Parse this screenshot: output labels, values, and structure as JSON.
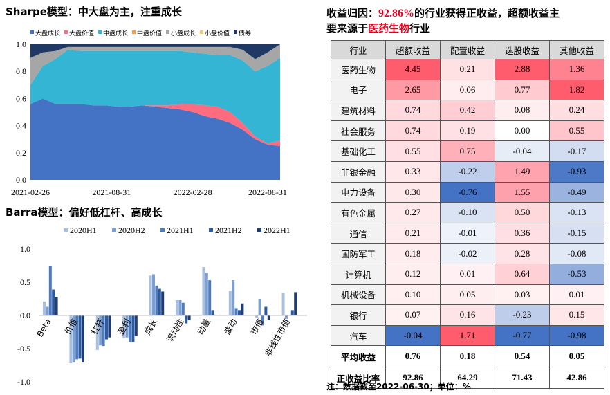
{
  "sharpe": {
    "title": "Sharpe模型：中大盘为主，注重成长",
    "legend": [
      {
        "name": "大盘成长",
        "color": "#4472c4"
      },
      {
        "name": "大盘价值",
        "color": "#ff6b7f"
      },
      {
        "name": "中盘成长",
        "color": "#33b5d3"
      },
      {
        "name": "中盘价值",
        "color": "#f39c4e"
      },
      {
        "name": "小盘成长",
        "color": "#a6a6a6"
      },
      {
        "name": "小盘价值",
        "color": "#f5c97a"
      },
      {
        "name": "债券",
        "color": "#203864"
      }
    ],
    "x_labels": [
      "2021-02-26",
      "2021-08-31",
      "2022-02-28",
      "2022-08-31"
    ],
    "y_labels": [
      "0.0",
      "0.2",
      "0.4",
      "0.6",
      "0.8",
      "1.0"
    ]
  },
  "barra": {
    "title": "Barra模型：偏好低杠杆、高成长",
    "legend": [
      {
        "name": "2020H1",
        "color": "#a9c0e0"
      },
      {
        "name": "2020H2",
        "color": "#7d9fd1"
      },
      {
        "name": "2021H1",
        "color": "#4f7bbf"
      },
      {
        "name": "2021H2",
        "color": "#2c5aa0"
      },
      {
        "name": "2022H1",
        "color": "#1f3d73"
      }
    ],
    "y_labels": [
      "1.0",
      "0.5",
      "0.0",
      "-0.5",
      "-1.0"
    ]
  },
  "chart_data": [
    {
      "type": "area",
      "title": "Sharpe模型：中大盘为主，注重成长",
      "stacked": true,
      "ylim": [
        0,
        1
      ],
      "x_tick_labels": [
        "2021-02-26",
        "2021-08-31",
        "2022-02-28",
        "2022-08-31"
      ],
      "x": [
        0,
        1,
        2,
        3,
        4,
        5,
        6,
        7,
        8,
        9,
        10,
        11,
        12,
        13,
        14,
        15,
        16,
        17,
        18,
        19,
        20
      ],
      "series": [
        {
          "name": "大盘成长",
          "values": [
            0.56,
            0.6,
            0.56,
            0.56,
            0.56,
            0.55,
            0.55,
            0.54,
            0.54,
            0.55,
            0.54,
            0.53,
            0.52,
            0.5,
            0.47,
            0.45,
            0.42,
            0.37,
            0.3,
            0.26,
            0.25
          ]
        },
        {
          "name": "大盘价值",
          "values": [
            0.0,
            0.0,
            0.0,
            0.0,
            0.0,
            0.0,
            0.0,
            0.0,
            0.0,
            0.0,
            0.01,
            0.02,
            0.04,
            0.06,
            0.08,
            0.09,
            0.08,
            0.05,
            0.02,
            0.01,
            0.04
          ]
        },
        {
          "name": "中盘成长",
          "values": [
            0.14,
            0.24,
            0.33,
            0.4,
            0.39,
            0.4,
            0.4,
            0.41,
            0.41,
            0.4,
            0.4,
            0.4,
            0.39,
            0.38,
            0.38,
            0.38,
            0.42,
            0.46,
            0.48,
            0.57,
            0.61
          ]
        },
        {
          "name": "中盘价值",
          "values": [
            0,
            0,
            0,
            0,
            0,
            0,
            0,
            0,
            0,
            0,
            0,
            0,
            0,
            0,
            0,
            0,
            0,
            0,
            0,
            0,
            0
          ]
        },
        {
          "name": "小盘成长",
          "values": [
            0.2,
            0.1,
            0.06,
            0.02,
            0.03,
            0.03,
            0.03,
            0.03,
            0.03,
            0.03,
            0.03,
            0.03,
            0.03,
            0.04,
            0.05,
            0.06,
            0.06,
            0.08,
            0.09,
            0.1,
            0.1
          ]
        },
        {
          "name": "小盘价值",
          "values": [
            0,
            0,
            0,
            0,
            0,
            0,
            0,
            0,
            0,
            0,
            0,
            0,
            0,
            0,
            0,
            0,
            0,
            0,
            0,
            0,
            0
          ]
        },
        {
          "name": "债券",
          "values": [
            0.1,
            0.06,
            0.05,
            0.02,
            0.02,
            0.02,
            0.02,
            0.02,
            0.02,
            0.02,
            0.02,
            0.02,
            0.02,
            0.02,
            0.02,
            0.02,
            0.02,
            0.04,
            0.11,
            0.06,
            0.0
          ]
        }
      ]
    },
    {
      "type": "bar",
      "title": "Barra模型：偏好低杠杆、高成长",
      "ylim": [
        -1,
        1
      ],
      "categories": [
        "Beta",
        "价值",
        "杠杆",
        "盈利",
        "成长",
        "流动性",
        "动量",
        "波动",
        "市值",
        "非线性市值"
      ],
      "series": [
        {
          "name": "2020H1",
          "values": [
            0.21,
            -0.72,
            -0.52,
            -0.34,
            0.6,
            0.23,
            0.73,
            0.37,
            -0.04,
            0.34
          ]
        },
        {
          "name": "2020H2",
          "values": [
            0.13,
            -0.71,
            -0.45,
            -0.33,
            0.62,
            0.23,
            0.64,
            0.53,
            0.25,
            -0.05
          ]
        },
        {
          "name": "2021H1",
          "values": [
            0.75,
            -0.66,
            -0.46,
            -0.4,
            0.45,
            0.19,
            0.53,
            0.11,
            -0.15,
            0.01
          ]
        },
        {
          "name": "2021H2",
          "values": [
            0.39,
            -0.65,
            -0.36,
            -0.4,
            0.4,
            -0.12,
            0.08,
            0.08,
            0.13,
            0.08
          ]
        },
        {
          "name": "2022H1",
          "values": [
            0.28,
            -0.71,
            -0.33,
            -0.31,
            0.36,
            -0.07,
            0.01,
            0.18,
            -0.07,
            0.35
          ]
        }
      ]
    },
    {
      "type": "table",
      "title": "收益归因：92.86%的行业获得正收益，超额收益主要来源于医药生物行业",
      "columns": [
        "行业",
        "超额收益",
        "配置收益",
        "选股收益",
        "其他收益"
      ],
      "rows": [
        [
          "医药生物",
          4.45,
          0.21,
          2.88,
          1.36
        ],
        [
          "电子",
          2.65,
          0.06,
          0.77,
          1.82
        ],
        [
          "建筑材料",
          0.74,
          0.42,
          0.08,
          0.24
        ],
        [
          "社会服务",
          0.74,
          0.19,
          0.0,
          0.55
        ],
        [
          "基础化工",
          0.55,
          0.75,
          -0.04,
          -0.17
        ],
        [
          "非银金融",
          0.33,
          -0.22,
          1.49,
          -0.93
        ],
        [
          "电力设备",
          0.3,
          -0.76,
          1.55,
          -0.49
        ],
        [
          "有色金属",
          0.27,
          -0.1,
          0.5,
          -0.13
        ],
        [
          "通信",
          0.21,
          -0.01,
          0.36,
          -0.15
        ],
        [
          "国防军工",
          0.18,
          -0.02,
          0.28,
          -0.08
        ],
        [
          "计算机",
          0.12,
          0.01,
          0.64,
          -0.53
        ],
        [
          "机械设备",
          0.1,
          0.05,
          0.03,
          0.01
        ],
        [
          "银行",
          0.07,
          0.16,
          -0.23,
          0.15
        ],
        [
          "汽车",
          -0.04,
          1.71,
          -0.77,
          -0.98
        ]
      ]
    }
  ],
  "attribution": {
    "title_prefix": "收益归因：",
    "title_highlight": "92.86%",
    "title_middle": "的行业获得正收益，超额收益主",
    "title_line2_prefix": "要来源于",
    "title_line2_highlight": "医药生物",
    "title_line2_suffix": "行业",
    "header": [
      "行业",
      "超额收益",
      "配置收益",
      "选股收益",
      "其他收益"
    ],
    "rows": [
      [
        "医药生物",
        "4.45",
        "0.21",
        "2.88",
        "1.36"
      ],
      [
        "电子",
        "2.65",
        "0.06",
        "0.77",
        "1.82"
      ],
      [
        "建筑材料",
        "0.74",
        "0.42",
        "0.08",
        "0.24"
      ],
      [
        "社会服务",
        "0.74",
        "0.19",
        "0.00",
        "0.55"
      ],
      [
        "基础化工",
        "0.55",
        "0.75",
        "-0.04",
        "-0.17"
      ],
      [
        "非银金融",
        "0.33",
        "-0.22",
        "1.49",
        "-0.93"
      ],
      [
        "电力设备",
        "0.30",
        "-0.76",
        "1.55",
        "-0.49"
      ],
      [
        "有色金属",
        "0.27",
        "-0.10",
        "0.50",
        "-0.13"
      ],
      [
        "通信",
        "0.21",
        "-0.01",
        "0.36",
        "-0.15"
      ],
      [
        "国防军工",
        "0.18",
        "-0.02",
        "0.28",
        "-0.08"
      ],
      [
        "计算机",
        "0.12",
        "0.01",
        "0.64",
        "-0.53"
      ],
      [
        "机械设备",
        "0.10",
        "0.05",
        "0.03",
        "0.01"
      ],
      [
        "银行",
        "0.07",
        "0.16",
        "-0.23",
        "0.15"
      ],
      [
        "汽车",
        "-0.04",
        "1.71",
        "-0.77",
        "-0.98"
      ]
    ],
    "summary": [
      [
        "平均收益",
        "0.76",
        "0.18",
        "0.54",
        "0.05"
      ],
      [
        "正收益比率",
        "92.86",
        "64.29",
        "71.43",
        "42.86"
      ]
    ],
    "note": "注：数据截至2022-06-30；单位：%",
    "pos_color": "#ff5c6e",
    "neg_color": "#4472c4"
  }
}
